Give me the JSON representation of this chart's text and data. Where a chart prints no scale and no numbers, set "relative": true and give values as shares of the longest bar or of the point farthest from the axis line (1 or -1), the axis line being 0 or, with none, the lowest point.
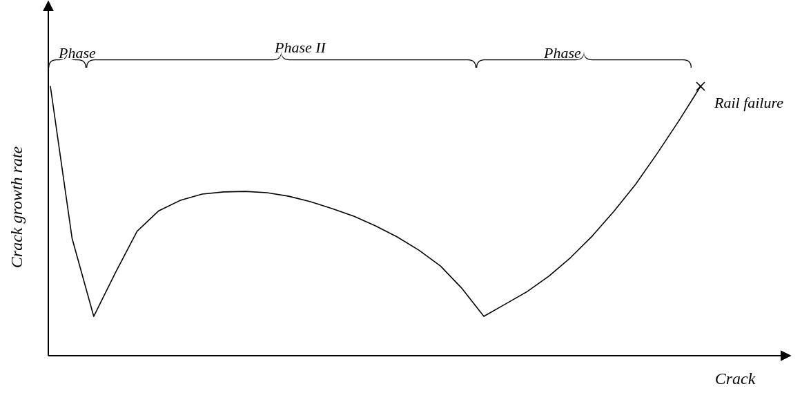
{
  "chart_data": {
    "type": "line",
    "relative": true,
    "xlabel": "Crack",
    "ylabel": "Crack growth rate",
    "categories": [
      null,
      null,
      null,
      null,
      null,
      null,
      null,
      null,
      null,
      null,
      null,
      null,
      null,
      null,
      null,
      null,
      null,
      null,
      null,
      null,
      null,
      null,
      null,
      null,
      null,
      null,
      null,
      null,
      null,
      null,
      null
    ],
    "series": [
      {
        "color": "#000000",
        "values": [
          1.0,
          0.436,
          0.146,
          0.308,
          0.462,
          0.538,
          0.577,
          0.6,
          0.608,
          0.61,
          0.605,
          0.592,
          0.572,
          0.546,
          0.518,
          0.482,
          0.441,
          0.392,
          0.333,
          0.249,
          0.146,
          0.192,
          0.238,
          0.295,
          0.364,
          0.444,
          0.536,
          0.636,
          0.751,
          0.872,
          1.0
        ]
      }
    ],
    "annotations": [
      "Phase",
      "Phase II",
      "Phase",
      "Rail failure"
    ]
  }
}
